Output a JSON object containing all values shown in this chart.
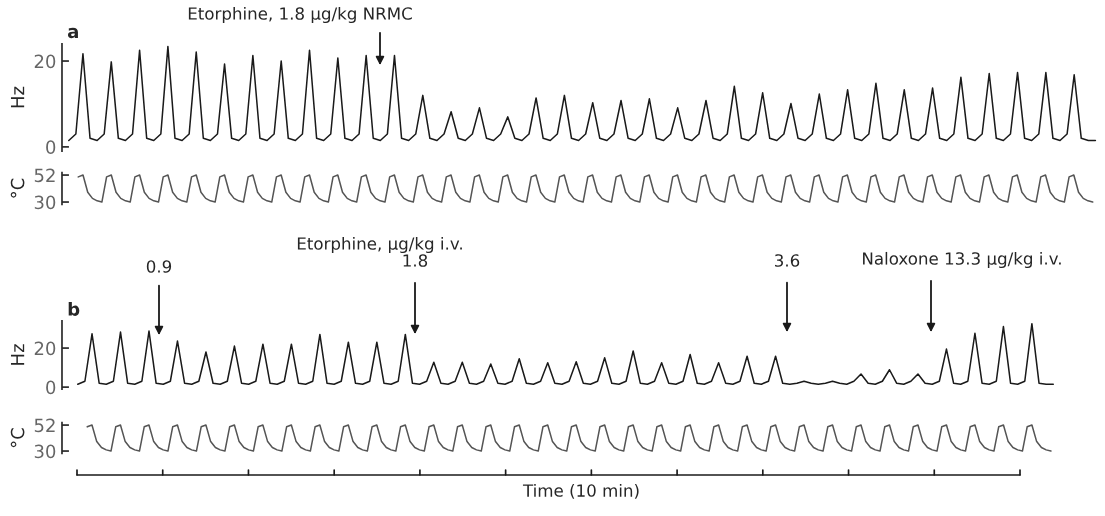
{
  "chart_data": [
    {
      "type": "line",
      "title": "a",
      "ylabel": "Hz",
      "ylim": [
        -1,
        24
      ],
      "yticks": [
        0,
        20
      ],
      "tick_labels": "y",
      "grid": false,
      "annotations": [
        "Etorphine, 1.8 μg/kg NRMC"
      ],
      "categories": [
        null,
        null,
        null,
        null,
        null,
        null,
        null,
        null,
        null,
        null,
        null,
        null,
        null,
        null,
        null,
        null,
        null,
        null,
        null,
        null,
        null,
        null,
        null,
        null,
        null,
        null,
        null,
        null,
        null,
        null,
        null,
        null,
        null,
        null,
        null,
        null,
        null,
        null,
        null,
        null,
        null,
        null,
        null,
        null,
        null,
        null,
        null,
        null,
        null,
        null,
        null,
        null,
        null,
        null,
        null,
        null,
        null,
        null,
        null,
        null,
        null,
        null,
        null,
        null,
        null,
        null,
        null,
        null,
        null,
        null,
        null,
        null,
        null,
        null,
        null,
        null,
        null,
        null,
        null,
        null,
        null,
        null,
        null,
        null,
        null,
        null,
        null,
        null,
        null,
        null,
        null,
        null,
        null,
        null,
        null,
        null,
        null,
        null,
        null,
        null,
        null,
        null,
        null,
        null,
        null,
        null,
        null,
        null,
        null,
        null,
        null,
        null,
        null,
        null,
        null,
        null,
        null,
        null,
        null,
        null,
        null,
        null,
        null,
        null,
        null,
        null,
        null,
        null,
        null,
        null,
        null,
        null,
        null,
        null,
        null,
        null,
        null,
        null,
        null,
        null,
        null,
        null,
        null,
        null,
        null,
        null
      ],
      "series": [
        {
          "color": "#1a1a1a",
          "values": [
            1.5,
            3,
            21.7,
            2,
            1.5,
            3,
            19.8,
            2,
            1.5,
            3,
            22.5,
            2,
            1.5,
            3,
            23.4,
            2,
            1.5,
            3,
            22.1,
            2,
            1.5,
            3,
            19.3,
            2,
            1.5,
            3,
            21.3,
            2,
            1.5,
            3,
            20,
            2,
            1.5,
            3,
            22.5,
            2,
            1.5,
            3,
            20.7,
            2,
            1.5,
            3,
            21.3,
            2,
            1.5,
            3,
            21.3,
            2,
            1.5,
            3,
            12,
            2,
            1.5,
            3,
            8.2,
            2,
            1.5,
            3,
            9.1,
            2,
            1.5,
            3,
            7,
            2,
            1.5,
            3,
            11.4,
            2,
            1.5,
            3,
            12,
            2,
            1.5,
            3,
            10.3,
            2,
            1.5,
            3,
            10.8,
            2,
            1.5,
            3,
            11.2,
            2,
            1.5,
            3,
            9.1,
            2,
            1.5,
            3,
            10.8,
            2,
            1.5,
            3,
            14.1,
            2,
            1.5,
            3,
            12.6,
            2,
            1.5,
            3,
            10.1,
            2,
            1.5,
            3,
            12.3,
            2,
            1.5,
            3,
            13.3,
            2,
            1.5,
            3,
            14.8,
            2,
            1.5,
            3,
            13.3,
            2,
            1.5,
            3,
            13.7,
            2,
            1.5,
            3,
            16.2,
            2,
            1.5,
            3,
            17.1,
            2,
            1.5,
            3,
            17.3,
            2,
            1.5,
            3,
            17.3,
            2,
            1.5,
            3,
            16.8,
            2,
            1.5,
            1.5
          ]
        }
      ]
    },
    {
      "type": "line",
      "ylabel": "°C",
      "ylim": [
        28,
        54
      ],
      "yticks": [
        30,
        52
      ],
      "tick_labels": "y",
      "grid": false,
      "categories": [
        null,
        null,
        null,
        null,
        null,
        null,
        null,
        null,
        null,
        null,
        null,
        null,
        null,
        null,
        null,
        null,
        null,
        null,
        null,
        null,
        null,
        null,
        null,
        null,
        null,
        null,
        null,
        null,
        null,
        null,
        null,
        null,
        null,
        null,
        null,
        null,
        null,
        null,
        null,
        null,
        null,
        null,
        null,
        null,
        null,
        null,
        null,
        null,
        null,
        null,
        null,
        null,
        null,
        null,
        null,
        null,
        null,
        null,
        null,
        null,
        null,
        null,
        null,
        null,
        null,
        null,
        null,
        null,
        null,
        null,
        null,
        null,
        null,
        null,
        null,
        null,
        null,
        null,
        null,
        null,
        null,
        null,
        null,
        null,
        null,
        null,
        null,
        null,
        null,
        null,
        null,
        null,
        null,
        null,
        null,
        null,
        null,
        null,
        null,
        null,
        null,
        null,
        null,
        null,
        null,
        null,
        null,
        null,
        null,
        null,
        null,
        null,
        null,
        null,
        null,
        null,
        null,
        null,
        null,
        null,
        null,
        null,
        null,
        null,
        null,
        null,
        null,
        null,
        null,
        null,
        null,
        null,
        null,
        null,
        null,
        null,
        null,
        null,
        null,
        null,
        null,
        null,
        null,
        null,
        null,
        null,
        null,
        null,
        null,
        null,
        null,
        null,
        null,
        null,
        null,
        null,
        null,
        null,
        null,
        null,
        null,
        null,
        null,
        null,
        null,
        null,
        null,
        null,
        null,
        null,
        null,
        null,
        null,
        null,
        null,
        null,
        null,
        null,
        null,
        null,
        null,
        null,
        null,
        null,
        null,
        null,
        null,
        null,
        null,
        null,
        null,
        null,
        null,
        null,
        null,
        null,
        null,
        null,
        null,
        null,
        null,
        null,
        null,
        null,
        null,
        null,
        null,
        null,
        null,
        null,
        null,
        null,
        null,
        null,
        null,
        null
      ],
      "series": [
        {
          "color": "#555555",
          "values": [
            50.5,
            52,
            38,
            33,
            31,
            30,
            50.5,
            52,
            38,
            33,
            31,
            30,
            50.5,
            52,
            38,
            33,
            31,
            30,
            50.5,
            52,
            38,
            33,
            31,
            30,
            50.5,
            52,
            38,
            33,
            31,
            30,
            50.5,
            52,
            38,
            33,
            31,
            30,
            50.5,
            52,
            38,
            33,
            31,
            30,
            50.5,
            52,
            38,
            33,
            31,
            30,
            50.5,
            52,
            38,
            33,
            31,
            30,
            50.5,
            52,
            38,
            33,
            31,
            30,
            50.5,
            52,
            38,
            33,
            31,
            30,
            50.5,
            52,
            38,
            33,
            31,
            30,
            50.5,
            52,
            38,
            33,
            31,
            30,
            50.5,
            52,
            38,
            33,
            31,
            30,
            50.5,
            52,
            38,
            33,
            31,
            30,
            50.5,
            52,
            38,
            33,
            31,
            30,
            50.5,
            52,
            38,
            33,
            31,
            30,
            50.5,
            52,
            38,
            33,
            31,
            30,
            50.5,
            52,
            38,
            33,
            31,
            30,
            50.5,
            52,
            38,
            33,
            31,
            30,
            50.5,
            52,
            38,
            33,
            31,
            30,
            50.5,
            52,
            38,
            33,
            31,
            30,
            50.5,
            52,
            38,
            33,
            31,
            30,
            50.5,
            52,
            38,
            33,
            31,
            30,
            50.5,
            52,
            38,
            33,
            31,
            30,
            50.5,
            52,
            38,
            33,
            31,
            30,
            50.5,
            52,
            38,
            33,
            31,
            30,
            50.5,
            52,
            38,
            33,
            31,
            30,
            50.5,
            52,
            38,
            33,
            31,
            30,
            50.5,
            52,
            38,
            33,
            31,
            30,
            50.5,
            52,
            38,
            33,
            31,
            30,
            50.5,
            52,
            38,
            33,
            31,
            30,
            50.5,
            52,
            38,
            33,
            31,
            30,
            50.5,
            52,
            38,
            33,
            31,
            30,
            50.5,
            52,
            38,
            33,
            31,
            30,
            50.5,
            52,
            38,
            33,
            31,
            30
          ]
        }
      ]
    },
    {
      "type": "line",
      "title": "b",
      "ylabel": "Hz",
      "ylim": [
        -1,
        34
      ],
      "yticks": [
        0,
        20
      ],
      "tick_labels": "y",
      "grid": false,
      "annotations": [
        "Etorphine, μg/kg i.v.",
        "0.9",
        "1.8",
        "3.6",
        "Naloxone 13.3 μg/kg i.v."
      ],
      "categories": [
        null,
        null,
        null,
        null,
        null,
        null,
        null,
        null,
        null,
        null,
        null,
        null,
        null,
        null,
        null,
        null,
        null,
        null,
        null,
        null,
        null,
        null,
        null,
        null,
        null,
        null,
        null,
        null,
        null,
        null,
        null,
        null,
        null,
        null,
        null,
        null,
        null,
        null,
        null,
        null,
        null,
        null,
        null,
        null,
        null,
        null,
        null,
        null,
        null,
        null,
        null,
        null,
        null,
        null,
        null,
        null,
        null,
        null,
        null,
        null,
        null,
        null,
        null,
        null,
        null,
        null,
        null,
        null,
        null,
        null,
        null,
        null,
        null,
        null,
        null,
        null,
        null,
        null,
        null,
        null,
        null,
        null,
        null,
        null,
        null,
        null,
        null,
        null,
        null,
        null,
        null,
        null,
        null,
        null,
        null,
        null,
        null,
        null,
        null,
        null,
        null,
        null,
        null,
        null,
        null,
        null,
        null,
        null,
        null,
        null,
        null,
        null,
        null,
        null,
        null,
        null,
        null,
        null,
        null,
        null,
        null,
        null,
        null,
        null,
        null,
        null,
        null,
        null,
        null,
        null,
        null,
        null,
        null,
        null,
        null,
        null,
        null,
        null
      ],
      "series": [
        {
          "color": "#1a1a1a",
          "values": [
            1.5,
            3,
            27.3,
            2,
            1.5,
            3,
            28.2,
            2,
            1.5,
            3,
            28.7,
            2,
            1.5,
            3,
            23.6,
            2,
            1.5,
            3,
            18,
            2,
            1.5,
            3,
            21,
            2,
            1.5,
            3,
            22,
            2,
            1.5,
            3,
            22,
            2,
            1.5,
            3,
            27,
            2,
            1.5,
            3,
            23,
            2,
            1.5,
            3,
            23,
            2,
            1.5,
            3,
            27,
            2,
            1.5,
            3,
            12.7,
            2,
            1.5,
            3,
            12.7,
            2,
            1.5,
            3,
            11.8,
            2,
            1.5,
            3,
            14.5,
            2,
            1.5,
            3,
            12.5,
            2,
            1.5,
            3,
            13,
            2,
            1.5,
            3,
            15,
            2,
            1.5,
            3,
            18.5,
            2,
            1.5,
            3,
            12.5,
            2,
            1.5,
            3,
            16.7,
            2,
            1.5,
            3,
            12.5,
            2,
            1.5,
            3,
            15.8,
            2,
            1.5,
            3,
            15.8,
            2,
            1.5,
            2,
            3,
            2,
            1.5,
            2,
            3,
            2,
            1.5,
            3,
            6.7,
            2,
            1.5,
            3,
            8.9,
            2,
            1.5,
            3,
            6.7,
            2,
            1.5,
            3,
            19.5,
            2,
            1.5,
            3,
            27.6,
            2,
            1.5,
            3,
            31,
            2,
            1.5,
            3,
            32.5,
            2,
            1.5,
            1.5
          ]
        }
      ]
    },
    {
      "type": "line",
      "ylabel": "°C",
      "xlabel": "Time (10 min)",
      "ylim": [
        28,
        54
      ],
      "yticks": [
        30,
        52
      ],
      "tick_labels": "y",
      "grid": false,
      "categories": [
        null,
        null,
        null,
        null,
        null,
        null,
        null,
        null,
        null,
        null,
        null,
        null,
        null,
        null,
        null,
        null,
        null,
        null,
        null,
        null,
        null,
        null,
        null,
        null,
        null,
        null,
        null,
        null,
        null,
        null,
        null,
        null,
        null,
        null,
        null,
        null,
        null,
        null,
        null,
        null,
        null,
        null,
        null,
        null,
        null,
        null,
        null,
        null,
        null,
        null,
        null,
        null,
        null,
        null,
        null,
        null,
        null,
        null,
        null,
        null,
        null,
        null,
        null,
        null,
        null,
        null,
        null,
        null,
        null,
        null,
        null,
        null,
        null,
        null,
        null,
        null,
        null,
        null,
        null,
        null,
        null,
        null,
        null,
        null,
        null,
        null,
        null,
        null,
        null,
        null,
        null,
        null,
        null,
        null,
        null,
        null,
        null,
        null,
        null,
        null,
        null,
        null,
        null,
        null,
        null,
        null,
        null,
        null,
        null,
        null,
        null,
        null,
        null,
        null,
        null,
        null,
        null,
        null,
        null,
        null,
        null,
        null,
        null,
        null,
        null,
        null,
        null,
        null,
        null,
        null,
        null,
        null,
        null,
        null,
        null,
        null,
        null,
        null,
        null,
        null,
        null,
        null,
        null,
        null,
        null,
        null,
        null,
        null,
        null,
        null,
        null,
        null,
        null,
        null,
        null,
        null,
        null,
        null,
        null,
        null,
        null,
        null,
        null,
        null,
        null,
        null,
        null,
        null,
        null,
        null,
        null,
        null,
        null,
        null,
        null,
        null,
        null,
        null,
        null,
        null,
        null,
        null,
        null,
        null,
        null,
        null,
        null,
        null,
        null,
        null,
        null,
        null,
        null,
        null,
        null,
        null,
        null,
        null,
        null,
        null,
        null,
        null,
        null,
        null
      ],
      "series": [
        {
          "color": "#555555",
          "values": [
            50.5,
            52,
            38,
            33,
            31,
            30,
            50.5,
            52,
            38,
            33,
            31,
            30,
            50.5,
            52,
            38,
            33,
            31,
            30,
            50.5,
            52,
            38,
            33,
            31,
            30,
            50.5,
            52,
            38,
            33,
            31,
            30,
            50.5,
            52,
            38,
            33,
            31,
            30,
            50.5,
            52,
            38,
            33,
            31,
            30,
            50.5,
            52,
            38,
            33,
            31,
            30,
            50.5,
            52,
            38,
            33,
            31,
            30,
            50.5,
            52,
            38,
            33,
            31,
            30,
            50.5,
            52,
            38,
            33,
            31,
            30,
            50.5,
            52,
            38,
            33,
            31,
            30,
            50.5,
            52,
            38,
            33,
            31,
            30,
            50.5,
            52,
            38,
            33,
            31,
            30,
            50.5,
            52,
            38,
            33,
            31,
            30,
            50.5,
            52,
            38,
            33,
            31,
            30,
            50.5,
            52,
            38,
            33,
            31,
            30,
            50.5,
            52,
            38,
            33,
            31,
            30,
            50.5,
            52,
            38,
            33,
            31,
            30,
            50.5,
            52,
            38,
            33,
            31,
            30,
            50.5,
            52,
            38,
            33,
            31,
            30,
            50.5,
            52,
            38,
            33,
            31,
            30,
            50.5,
            52,
            38,
            33,
            31,
            30,
            50.5,
            52,
            38,
            33,
            31,
            30,
            50.5,
            52,
            38,
            33,
            31,
            30,
            50.5,
            52,
            38,
            33,
            31,
            30,
            50.5,
            52,
            38,
            33,
            31,
            30,
            50.5,
            52,
            38,
            33,
            31,
            30,
            50.5,
            52,
            38,
            33,
            31,
            30,
            50.5,
            52,
            38,
            33,
            31,
            30,
            50.5,
            52,
            38,
            33,
            31,
            30,
            50.5,
            52,
            38,
            33,
            31,
            30,
            50.5,
            52,
            38,
            33,
            31,
            30,
            50.5,
            52,
            38,
            33,
            31,
            30
          ]
        }
      ]
    }
  ]
}
